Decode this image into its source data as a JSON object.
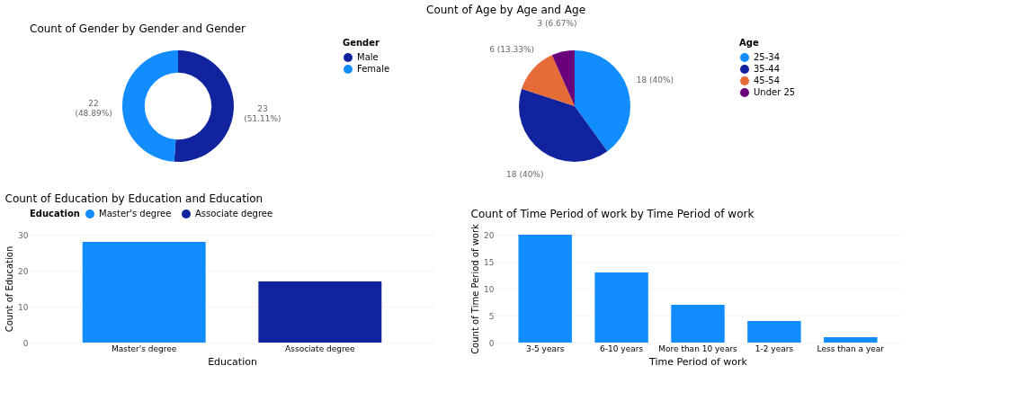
{
  "chart_data": [
    {
      "type": "donut",
      "title": "Count of Gender by Gender and Gender",
      "legend_title": "Gender",
      "legend": "right",
      "categories": [
        "Male",
        "Female"
      ],
      "values": [
        23,
        22
      ],
      "colors": [
        "#12239e",
        "#118dff"
      ],
      "value_labels": [
        "23 (51.11%)",
        "22 (48.89%)"
      ]
    },
    {
      "type": "pie",
      "title": "Count of Age by Age and Age",
      "legend_title": "Age",
      "legend": "right",
      "categories": [
        "25-34",
        "35-44",
        "45-54",
        "Under 25"
      ],
      "values": [
        18,
        18,
        6,
        3
      ],
      "colors": [
        "#118dff",
        "#12239e",
        "#e66c37",
        "#6b007b"
      ],
      "value_labels": [
        "18 (40%)",
        "18 (40%)",
        "6 (13.33%)",
        "3 (6.67%)"
      ]
    },
    {
      "type": "bar",
      "title": "Count of Education by Education and Education",
      "xlabel": "Education",
      "ylabel": "Count of Education",
      "legend_title": "Education",
      "legend": "top",
      "categories": [
        "Master's degree",
        "Associate degree"
      ],
      "series": [
        {
          "name": "Master's degree",
          "color": "#118dff",
          "values": [
            28,
            null
          ]
        },
        {
          "name": "Associate degree",
          "color": "#12239e",
          "values": [
            null,
            17
          ]
        }
      ],
      "ylim": [
        0,
        30
      ],
      "yticks": [
        0,
        10,
        20,
        30
      ],
      "grid": "y"
    },
    {
      "type": "bar",
      "title": "Count of Time Period of work by Time Period of work",
      "xlabel": "Time Period of work",
      "ylabel": "Count of Time Period of work",
      "categories": [
        "3-5 years",
        "6-10 years",
        "More than 10 years",
        "1-2 years",
        "Less than a year"
      ],
      "values": [
        20,
        13,
        7,
        4,
        1
      ],
      "color": "#118dff",
      "ylim": [
        0,
        20
      ],
      "yticks": [
        0,
        5,
        10,
        15,
        20
      ],
      "grid": "y"
    }
  ]
}
